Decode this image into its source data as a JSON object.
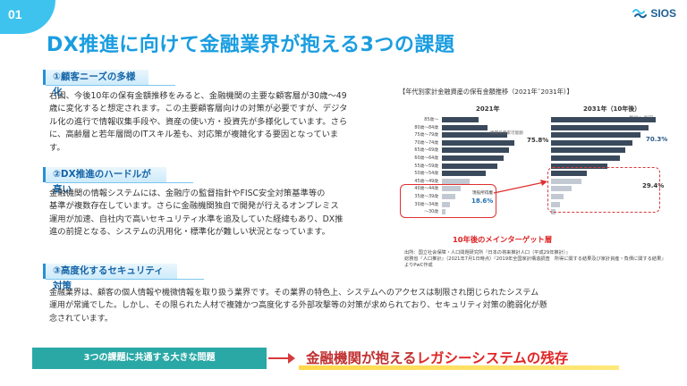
{
  "slide_number": "01",
  "title": "DX推進に向けて金融業界が抱える3つの課題",
  "logo_text": "SIOS",
  "sections": [
    {
      "heading": "①顧客ニーズの多様化",
      "lines": [
        "右図、今後10年の保有金額推移をみると、金融機関の主要な顧客層が30歳〜49",
        "歳に変化すると想定されます。この主要顧客層向けの対策が必要ですが、デジタ",
        "ル化の進行で情報収集手段や、資産の使い方・投資先が多様化しています。さら",
        "に、高齢層と若年層間のITスキル差も、対応策が複雑化する要因となっていま",
        "す。"
      ]
    },
    {
      "heading": "②DX推進のハードルが高い",
      "lines": [
        "金融機関の情報システムには、金融庁の監督指針やFISC安全対策基準等の",
        "基準が複数存在しています。さらに金融機関独自で開発が行えるオンプレミス",
        "運用が加速、自社内で高いセキュリティ水準を追及していた経緯もあり、DX推",
        "進の前提となる、システムの汎用化・標準化が難しい状況となっています。"
      ]
    },
    {
      "heading": "③高度化するセキュリティ対策",
      "lines": [
        "金融業界は、顧客の個人情報や機微情報を取り扱う業界です。その業界の特色上、システムへのアクセスは制限され閉じられたシステム",
        "運用が常識でした。しかし、その限られた人材で複雑かつ高度化する外部攻撃等の対策が求められており、セキュリティ対策の脆弱化が懸",
        "念されています。"
      ]
    }
  ],
  "chart": {
    "caption": "【年代別家計金融資産の保有金額推移（2021年˜2031年）】",
    "panel_left_title": "2021年",
    "panel_right_title": "2031年（10年後）",
    "unit": "単位：兆円",
    "age_groups": [
      "85歳〜",
      "80歳〜84歳",
      "75歳〜79歳",
      "70歳〜74歳",
      "65歳〜69歳",
      "60歳〜64歳",
      "55歳〜59歳",
      "50歳〜54歳",
      "45歳〜49歳",
      "40歳〜44歳",
      "35歳〜39歳",
      "30歳〜34歳",
      "〜30歳"
    ],
    "left_note": "高齢者保有資産",
    "left_note2": "機関投資家可能額",
    "left_pct_top": "75.8%",
    "left_note_mid": "現役所得層",
    "left_pct_mid": "18.6%",
    "right_pct_top": "70.3%",
    "right_pct_mid": "29.4%",
    "target_label": "10年後のメインターゲット層"
  },
  "chart_data": [
    {
      "type": "bar",
      "title": "2021年",
      "categories": [
        "85歳〜",
        "80歳〜84歳",
        "75歳〜79歳",
        "70歳〜74歳",
        "65歳〜69歳",
        "60歳〜64歳",
        "55歳〜59歳",
        "50歳〜54歳",
        "45歳〜49歳",
        "40歳〜44歳",
        "35歳〜39歳",
        "30歳〜34歳",
        "〜30歳"
      ],
      "values": [
        95,
        120,
        170,
        190,
        175,
        160,
        145,
        115,
        72,
        50,
        35,
        22,
        10
      ]
    },
    {
      "type": "bar",
      "title": "2031年（10年後）",
      "categories": [
        "85歳〜",
        "80歳〜84歳",
        "75歳〜79歳",
        "70歳〜74歳",
        "65歳〜69歳",
        "60歳〜64歳",
        "55歳〜59歳",
        "50歳〜54歳",
        "45歳〜49歳",
        "40歳〜44歳",
        "35歳〜39歳",
        "30歳〜34歳",
        "〜30歳"
      ],
      "values": [
        205,
        190,
        175,
        160,
        145,
        135,
        110,
        70,
        60,
        40,
        25,
        18,
        8
      ]
    }
  ],
  "source_lines": [
    "出所：国立社会保障・人口問題研究所『日本の将来推計人口（平成29年推計）』",
    "総務省『人口推計』（2021年7月1日時点）『2019年全国家計構造調査　所得に関する結果及び家計資産・負債に関する結果』",
    "よりPwC作成"
  ],
  "banner_text": "3つの課題に共通する大きな問題",
  "conclusion_plain": "金融機関が抱える",
  "conclusion_strong": "レガシーシステムの残存",
  "colors": {
    "accent_blue": "#1a9de0",
    "teal": "#2aa8a6",
    "bar_dark": "#3a4a5c",
    "bar_light": "#c3c9d3",
    "red": "#e02525"
  }
}
